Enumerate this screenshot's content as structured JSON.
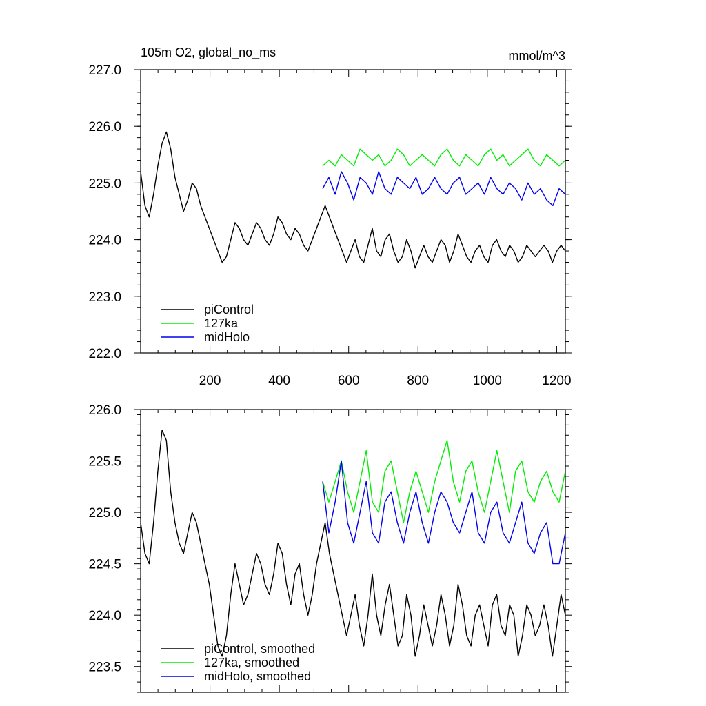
{
  "chart_data": [
    {
      "type": "line",
      "title": "105m O2, global_no_ms",
      "units": "mmol/m^3",
      "xlim": [
        0,
        1225
      ],
      "ylim": [
        222.0,
        227.0
      ],
      "x_ticks": [
        200,
        400,
        600,
        800,
        1000,
        1200
      ],
      "y_ticks": [
        222.0,
        223.0,
        224.0,
        225.0,
        226.0,
        227.0
      ],
      "y_tick_labels": [
        "222.0",
        "223.0",
        "224.0",
        "225.0",
        "226.0",
        "227.0"
      ],
      "x_tick_labels": [
        "200",
        "400",
        "600",
        "800",
        "1000",
        "1200"
      ],
      "grid": false,
      "legend_position": "bottom-left",
      "series": [
        {
          "name": "piControl",
          "color": "#000000",
          "x_start": 0,
          "x_end": 1225,
          "values": [
            225.2,
            224.6,
            224.4,
            224.8,
            225.3,
            225.7,
            225.9,
            225.6,
            225.1,
            224.8,
            224.5,
            224.7,
            225.0,
            224.9,
            224.6,
            224.4,
            224.2,
            224.0,
            223.8,
            223.6,
            223.7,
            224.0,
            224.3,
            224.2,
            224.0,
            223.9,
            224.1,
            224.3,
            224.2,
            224.0,
            223.9,
            224.1,
            224.4,
            224.3,
            224.1,
            224.0,
            224.2,
            224.1,
            223.9,
            223.8,
            224.0,
            224.2,
            224.4,
            224.6,
            224.4,
            224.2,
            224.0,
            223.8,
            223.6,
            223.8,
            224.0,
            223.7,
            223.6,
            223.9,
            224.2,
            223.8,
            223.7,
            224.0,
            224.1,
            223.8,
            223.6,
            223.7,
            224.0,
            223.8,
            223.5,
            223.7,
            223.9,
            223.7,
            223.6,
            223.8,
            224.0,
            223.9,
            223.6,
            223.8,
            224.1,
            223.9,
            223.7,
            223.6,
            223.8,
            223.9,
            223.7,
            223.6,
            223.9,
            224.0,
            223.8,
            223.7,
            223.9,
            223.8,
            223.6,
            223.7,
            223.9,
            223.8,
            223.7,
            223.8,
            223.9,
            223.8,
            223.6,
            223.8,
            223.9,
            223.8
          ],
          "label": "piControl"
        },
        {
          "name": "127ka",
          "color": "#00ee00",
          "x_start": 525,
          "x_end": 1225,
          "values": [
            225.3,
            225.4,
            225.3,
            225.5,
            225.4,
            225.3,
            225.6,
            225.5,
            225.4,
            225.5,
            225.3,
            225.4,
            225.6,
            225.5,
            225.3,
            225.4,
            225.5,
            225.4,
            225.3,
            225.5,
            225.6,
            225.4,
            225.3,
            225.5,
            225.4,
            225.3,
            225.5,
            225.6,
            225.4,
            225.5,
            225.3,
            225.4,
            225.5,
            225.6,
            225.4,
            225.3,
            225.5,
            225.4,
            225.3,
            225.4
          ],
          "label": "127ka"
        },
        {
          "name": "midHolo",
          "color": "#0000ee",
          "x_start": 525,
          "x_end": 1225,
          "values": [
            224.9,
            225.1,
            224.8,
            225.2,
            225.0,
            224.7,
            225.1,
            225.0,
            224.8,
            225.2,
            224.9,
            224.8,
            225.1,
            225.0,
            224.9,
            225.1,
            224.8,
            224.9,
            225.1,
            224.9,
            224.8,
            225.0,
            225.1,
            224.8,
            224.9,
            225.0,
            224.8,
            225.1,
            224.9,
            224.8,
            225.0,
            224.9,
            224.7,
            225.0,
            224.8,
            224.9,
            224.7,
            224.6,
            224.9,
            224.8
          ],
          "label": "midHolo"
        }
      ]
    },
    {
      "type": "line",
      "title": "",
      "xlim": [
        0,
        1225
      ],
      "ylim": [
        223.25,
        226.0
      ],
      "y_ticks": [
        223.5,
        224.0,
        224.5,
        225.0,
        225.5,
        226.0
      ],
      "y_tick_labels": [
        "223.5",
        "224.0",
        "224.5",
        "225.0",
        "225.5",
        "226.0"
      ],
      "grid": false,
      "legend_position": "bottom-left",
      "series": [
        {
          "name": "piControl, smoothed",
          "color": "#000000",
          "x_start": 0,
          "x_end": 1225,
          "values": [
            224.9,
            224.6,
            224.5,
            224.9,
            225.4,
            225.8,
            225.7,
            225.2,
            224.9,
            224.7,
            224.6,
            224.8,
            225.0,
            224.9,
            224.7,
            224.5,
            224.3,
            224.0,
            223.7,
            223.6,
            223.8,
            224.2,
            224.5,
            224.3,
            224.1,
            224.2,
            224.4,
            224.6,
            224.5,
            224.3,
            224.2,
            224.4,
            224.7,
            224.6,
            224.3,
            224.1,
            224.4,
            224.5,
            224.2,
            224.0,
            224.2,
            224.5,
            224.7,
            224.9,
            224.6,
            224.4,
            224.2,
            224.0,
            223.8,
            224.0,
            224.2,
            223.9,
            223.7,
            224.0,
            224.4,
            224.0,
            223.8,
            224.1,
            224.3,
            224.0,
            223.7,
            223.8,
            224.2,
            224.0,
            223.6,
            223.8,
            224.1,
            223.9,
            223.7,
            223.9,
            224.2,
            224.0,
            223.7,
            223.9,
            224.3,
            224.1,
            223.8,
            223.7,
            224.0,
            224.1,
            223.9,
            223.7,
            224.1,
            224.2,
            223.9,
            223.8,
            224.1,
            224.0,
            223.6,
            223.8,
            224.1,
            224.0,
            223.8,
            223.9,
            224.1,
            223.9,
            223.6,
            223.9,
            224.2,
            224.0
          ],
          "label": "piControl, smoothed"
        },
        {
          "name": "127ka, smoothed",
          "color": "#00ee00",
          "x_start": 525,
          "x_end": 1225,
          "values": [
            225.3,
            225.1,
            225.3,
            225.5,
            225.2,
            225.0,
            225.3,
            225.6,
            225.1,
            225.0,
            225.4,
            225.5,
            225.2,
            224.9,
            225.2,
            225.4,
            225.2,
            225.0,
            225.3,
            225.5,
            225.7,
            225.3,
            225.1,
            225.4,
            225.5,
            225.2,
            225.0,
            225.3,
            225.6,
            225.3,
            225.0,
            225.4,
            225.5,
            225.2,
            225.1,
            225.3,
            225.4,
            225.2,
            225.1,
            225.4
          ],
          "label": "127ka, smoothed"
        },
        {
          "name": "midHolo, smoothed",
          "color": "#0000ee",
          "x_start": 525,
          "x_end": 1225,
          "values": [
            225.3,
            224.8,
            225.1,
            225.5,
            224.9,
            224.7,
            225.0,
            225.3,
            224.8,
            224.7,
            225.1,
            225.2,
            224.9,
            224.7,
            225.0,
            225.2,
            224.9,
            224.7,
            225.0,
            225.2,
            225.1,
            224.9,
            224.8,
            225.0,
            225.2,
            224.8,
            224.7,
            225.0,
            225.1,
            224.8,
            224.7,
            224.9,
            225.1,
            224.7,
            224.6,
            224.8,
            224.9,
            224.5,
            224.5,
            224.8
          ],
          "label": "midHolo, smoothed"
        }
      ]
    }
  ]
}
